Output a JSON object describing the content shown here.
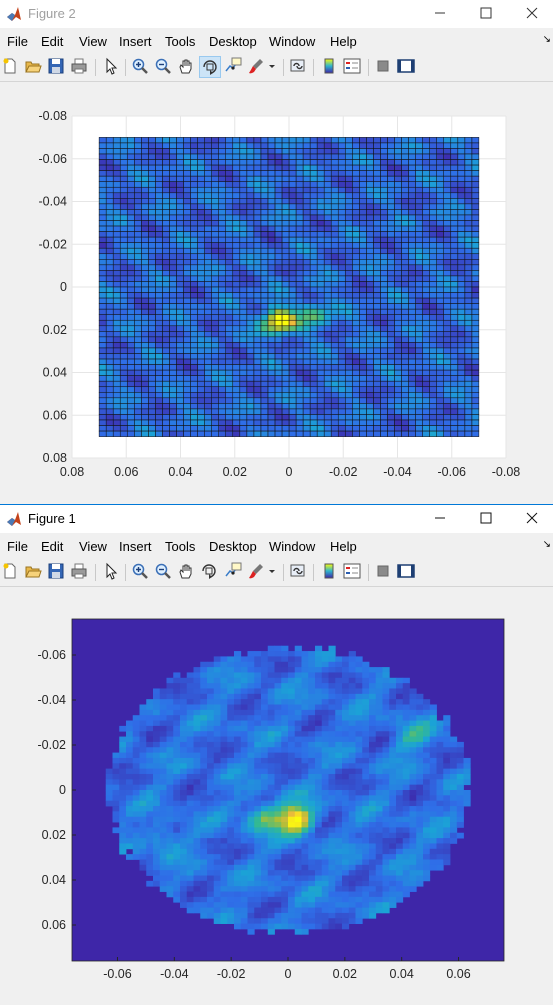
{
  "colors": {
    "accent": "#0078d7",
    "colormap_low": "#3e26a8",
    "colormap_high": "#f9fb0e"
  },
  "figure_top": {
    "title": "Figure 2",
    "menu": [
      "File",
      "Edit",
      "View",
      "Insert",
      "Tools",
      "Desktop",
      "Window",
      "Help"
    ],
    "toolbar_icons": [
      "new-figure-icon",
      "open-file-icon",
      "save-icon",
      "print-icon",
      "select-pointer-icon",
      "zoom-in-icon",
      "zoom-out-icon",
      "pan-hand-icon",
      "rotate-3d-icon",
      "data-cursor-icon",
      "brush-icon",
      "link-plot-icon",
      "colorbar-icon",
      "legend-icon",
      "hide-plot-tools-icon",
      "show-plot-tools-icon"
    ],
    "active_tool": "rotate-3d-icon"
  },
  "figure_bottom": {
    "title": "Figure 1",
    "menu": [
      "File",
      "Edit",
      "View",
      "Insert",
      "Tools",
      "Desktop",
      "Window",
      "Help"
    ]
  },
  "chart_data": [
    {
      "type": "heatmap",
      "style": "surface mesh, 3D rotated view",
      "x_ticks": [
        "0.08",
        "0.06",
        "0.04",
        "0.02",
        "0",
        "-0.02",
        "-0.04",
        "-0.06",
        "-0.08"
      ],
      "y_ticks": [
        "-0.08",
        "-0.06",
        "-0.04",
        "-0.02",
        "0",
        "0.02",
        "0.04",
        "0.06",
        "0.08"
      ],
      "xlim": [
        0.08,
        -0.08
      ],
      "ylim": [
        -0.08,
        0.08
      ],
      "grid": true,
      "peaks": [
        {
          "x": 0.004,
          "y": 0.016,
          "level": 1.0
        },
        {
          "x": -0.01,
          "y": 0.013,
          "level": 0.5
        }
      ]
    },
    {
      "type": "heatmap",
      "style": "image, circular aperture",
      "x_ticks": [
        "-0.06",
        "-0.04",
        "-0.02",
        "0",
        "0.02",
        "0.04",
        "0.06"
      ],
      "y_ticks": [
        "-0.06",
        "-0.04",
        "-0.02",
        "0",
        "0.02",
        "0.04",
        "0.06"
      ],
      "xlim": [
        -0.076,
        0.076
      ],
      "ylim": [
        -0.076,
        0.076
      ],
      "aperture_radius": 0.062,
      "peaks": [
        {
          "x": 0.003,
          "y": 0.013,
          "level": 1.0
        },
        {
          "x": -0.009,
          "y": 0.012,
          "level": 0.55
        },
        {
          "x": 0.043,
          "y": -0.024,
          "level": 0.35
        },
        {
          "x": -0.044,
          "y": 0.022,
          "level": 0.3
        }
      ]
    }
  ]
}
